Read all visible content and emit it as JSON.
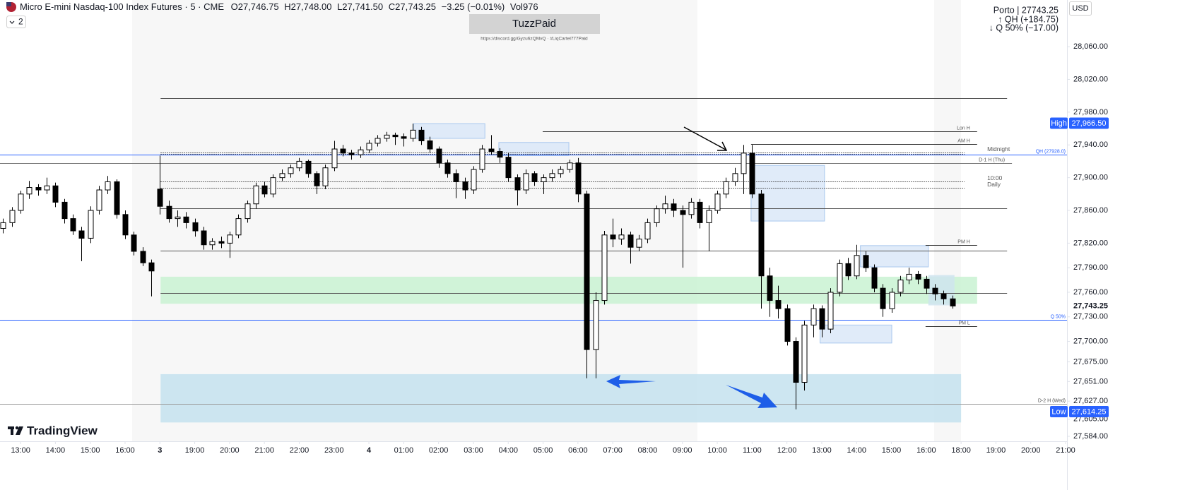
{
  "header": {
    "symbol": "Micro E-mini Nasdaq-100 Index Futures · 5 · CME",
    "ohlc": [
      {
        "key": "O",
        "value": "27,746.75"
      },
      {
        "key": "H",
        "value": "27,748.00"
      },
      {
        "key": "L",
        "value": "27,741.50"
      },
      {
        "key": "C",
        "value": "27,743.25"
      }
    ],
    "change": "−3.25 (−0.01%)",
    "vol_key": "Vol",
    "vol": "976",
    "badge": "2"
  },
  "watermark": {
    "title": "TuzzPaid",
    "subtitle": "https://discord.gg/Gyzu6zQMvQ  ·  #LiqCartel777Paid"
  },
  "info": {
    "lines": [
      "Porto | 27743.25",
      "↑ QH (+184.75)",
      "↓ Q 50% (−17.00)"
    ],
    "currency": "USD"
  },
  "logo": "TradingView",
  "chart_data": {
    "type": "candlestick",
    "x": [
      -0.5,
      -0.25,
      0,
      0.25,
      0.5,
      0.75,
      1,
      1.25,
      1.5,
      1.75,
      2,
      2.25,
      2.5,
      2.75,
      3,
      3.25,
      3.5,
      3.75,
      4,
      4.25,
      4.5,
      4.75,
      5,
      5.25,
      5.5,
      5.75,
      6,
      6.25,
      6.5,
      6.75,
      7,
      7.25,
      7.5,
      7.75,
      8,
      8.25,
      8.5,
      8.75,
      9,
      9.25,
      9.5,
      9.75,
      10,
      10.25,
      10.5,
      10.75,
      11,
      11.25,
      11.5,
      11.75,
      12,
      12.25,
      12.5,
      12.75,
      13,
      13.25,
      13.5,
      13.75,
      14,
      14.25,
      14.5,
      14.75,
      15,
      15.25,
      15.5,
      15.75,
      16,
      16.25,
      16.5,
      16.75,
      17,
      17.25,
      17.5,
      17.75,
      18,
      18.25,
      18.5,
      18.75,
      19,
      19.25,
      19.5,
      19.75,
      20,
      20.25,
      20.5,
      20.75,
      21,
      21.25,
      21.5,
      21.75,
      22,
      22.25,
      22.5,
      22.75,
      23,
      23.25,
      23.5,
      23.75,
      24,
      24.25,
      24.5,
      24.75,
      25,
      25.25,
      25.5,
      25.75,
      26,
      26.25,
      26.5,
      26.75
    ],
    "candles": [
      [
        27838,
        27850,
        27832,
        27845
      ],
      [
        27845,
        27864,
        27840,
        27860
      ],
      [
        27860,
        27884,
        27856,
        27880
      ],
      [
        27880,
        27896,
        27874,
        27888
      ],
      [
        27888,
        27892,
        27878,
        27885
      ],
      [
        27885,
        27900,
        27880,
        27890
      ],
      [
        27890,
        27894,
        27864,
        27870
      ],
      [
        27870,
        27874,
        27844,
        27850
      ],
      [
        27850,
        27855,
        27830,
        27835
      ],
      [
        27835,
        27840,
        27798,
        27826
      ],
      [
        27826,
        27865,
        27820,
        27860
      ],
      [
        27860,
        27890,
        27855,
        27885
      ],
      [
        27885,
        27902,
        27880,
        27895
      ],
      [
        27895,
        27898,
        27850,
        27855
      ],
      [
        27855,
        27860,
        27825,
        27830
      ],
      [
        27830,
        27834,
        27805,
        27810
      ],
      [
        27810,
        27815,
        27792,
        27796
      ],
      [
        27796,
        27800,
        27755,
        27786
      ],
      [
        27886,
        27927,
        27855,
        27865
      ],
      [
        27865,
        27872,
        27845,
        27850
      ],
      [
        27850,
        27860,
        27840,
        27852
      ],
      [
        27852,
        27858,
        27838,
        27845
      ],
      [
        27845,
        27850,
        27828,
        27835
      ],
      [
        27835,
        27840,
        27812,
        27818
      ],
      [
        27818,
        27826,
        27812,
        27822
      ],
      [
        27822,
        27828,
        27814,
        27820
      ],
      [
        27820,
        27834,
        27802,
        27830
      ],
      [
        27830,
        27855,
        27826,
        27850
      ],
      [
        27850,
        27872,
        27845,
        27868
      ],
      [
        27868,
        27894,
        27862,
        27890
      ],
      [
        27890,
        27895,
        27876,
        27880
      ],
      [
        27880,
        27904,
        27876,
        27900
      ],
      [
        27900,
        27910,
        27896,
        27905
      ],
      [
        27905,
        27916,
        27900,
        27912
      ],
      [
        27912,
        27924,
        27908,
        27920
      ],
      [
        27920,
        27922,
        27900,
        27905
      ],
      [
        27905,
        27908,
        27880,
        27890
      ],
      [
        27890,
        27916,
        27886,
        27912
      ],
      [
        27912,
        27945,
        27908,
        27935
      ],
      [
        27935,
        27940,
        27926,
        27930
      ],
      [
        27930,
        27934,
        27922,
        27928
      ],
      [
        27928,
        27938,
        27924,
        27934
      ],
      [
        27934,
        27946,
        27930,
        27942
      ],
      [
        27942,
        27952,
        27938,
        27948
      ],
      [
        27948,
        27956,
        27944,
        27952
      ],
      [
        27952,
        27955,
        27940,
        27950
      ],
      [
        27950,
        27954,
        27938,
        27948
      ],
      [
        27948,
        27966,
        27944,
        27958
      ],
      [
        27958,
        27962,
        27940,
        27945
      ],
      [
        27945,
        27950,
        27930,
        27935
      ],
      [
        27935,
        27938,
        27912,
        27918
      ],
      [
        27918,
        27922,
        27900,
        27905
      ],
      [
        27905,
        27910,
        27875,
        27895
      ],
      [
        27895,
        27900,
        27874,
        27885
      ],
      [
        27885,
        27914,
        27880,
        27910
      ],
      [
        27910,
        27940,
        27906,
        27935
      ],
      [
        27935,
        27952,
        27928,
        27932
      ],
      [
        27932,
        27936,
        27918,
        27925
      ],
      [
        27925,
        27930,
        27895,
        27900
      ],
      [
        27900,
        27904,
        27866,
        27885
      ],
      [
        27885,
        27910,
        27880,
        27905
      ],
      [
        27905,
        27908,
        27890,
        27895
      ],
      [
        27895,
        27904,
        27880,
        27900
      ],
      [
        27900,
        27910,
        27895,
        27905
      ],
      [
        27905,
        27914,
        27900,
        27910
      ],
      [
        27910,
        27922,
        27906,
        27918
      ],
      [
        27918,
        27924,
        27870,
        27880
      ],
      [
        27880,
        27884,
        27655,
        27690
      ],
      [
        27690,
        27760,
        27655,
        27750
      ],
      [
        27750,
        27835,
        27745,
        27830
      ],
      [
        27830,
        27850,
        27815,
        27825
      ],
      [
        27825,
        27838,
        27818,
        27830
      ],
      [
        27830,
        27834,
        27795,
        27815
      ],
      [
        27815,
        27830,
        27810,
        27825
      ],
      [
        27825,
        27850,
        27820,
        27845
      ],
      [
        27845,
        27866,
        27840,
        27862
      ],
      [
        27862,
        27878,
        27856,
        27868
      ],
      [
        27868,
        27874,
        27852,
        27860
      ],
      [
        27860,
        27866,
        27790,
        27855
      ],
      [
        27855,
        27875,
        27850,
        27870
      ],
      [
        27870,
        27874,
        27838,
        27845
      ],
      [
        27845,
        27866,
        27810,
        27860
      ],
      [
        27860,
        27884,
        27856,
        27880
      ],
      [
        27880,
        27900,
        27875,
        27895
      ],
      [
        27895,
        27912,
        27890,
        27905
      ],
      [
        27905,
        27940,
        27880,
        27930
      ],
      [
        27930,
        27940,
        27875,
        27880
      ],
      [
        27880,
        27885,
        27740,
        27780
      ],
      [
        27780,
        27790,
        27730,
        27750
      ],
      [
        27750,
        27768,
        27728,
        27740
      ],
      [
        27740,
        27745,
        27695,
        27700
      ],
      [
        27700,
        27705,
        27617,
        27650
      ],
      [
        27650,
        27725,
        27640,
        27720
      ],
      [
        27720,
        27745,
        27705,
        27740
      ],
      [
        27740,
        27744,
        27705,
        27715
      ],
      [
        27715,
        27765,
        27710,
        27760
      ],
      [
        27760,
        27800,
        27755,
        27795
      ],
      [
        27795,
        27802,
        27775,
        27780
      ],
      [
        27780,
        27818,
        27776,
        27805
      ],
      [
        27805,
        27810,
        27785,
        27790
      ],
      [
        27790,
        27794,
        27760,
        27765
      ],
      [
        27765,
        27770,
        27730,
        27740
      ],
      [
        27740,
        27765,
        27735,
        27760
      ],
      [
        27760,
        27780,
        27755,
        27775
      ],
      [
        27775,
        27790,
        27770,
        27782
      ],
      [
        27782,
        27786,
        27770,
        27776
      ],
      [
        27776,
        27780,
        27758,
        27765
      ],
      [
        27765,
        27770,
        27750,
        27758
      ],
      [
        27758,
        27762,
        27745,
        27752
      ],
      [
        27752,
        27756,
        27740,
        27743.25
      ]
    ],
    "up_color": "#ffffff",
    "down_color": "#000000",
    "outline_color": "#000000",
    "xlim": [
      -0.59,
      30.04
    ],
    "xticks": [
      {
        "value": 0,
        "label": "13:00"
      },
      {
        "value": 1,
        "label": "14:00"
      },
      {
        "value": 2,
        "label": "15:00"
      },
      {
        "value": 3,
        "label": "16:00"
      },
      {
        "value": 4,
        "label": "3"
      },
      {
        "value": 5,
        "label": "19:00"
      },
      {
        "value": 6,
        "label": "20:00"
      },
      {
        "value": 7,
        "label": "21:00"
      },
      {
        "value": 8,
        "label": "22:00"
      },
      {
        "value": 9,
        "label": "23:00"
      },
      {
        "value": 10,
        "label": "4"
      },
      {
        "value": 11,
        "label": "01:00"
      },
      {
        "value": 12,
        "label": "02:00"
      },
      {
        "value": 13,
        "label": "03:00"
      },
      {
        "value": 14,
        "label": "04:00"
      },
      {
        "value": 15,
        "label": "05:00"
      },
      {
        "value": 16,
        "label": "06:00"
      },
      {
        "value": 17,
        "label": "07:00"
      },
      {
        "value": 18,
        "label": "08:00"
      },
      {
        "value": 19,
        "label": "09:00"
      },
      {
        "value": 20,
        "label": "10:00"
      },
      {
        "value": 21,
        "label": "11:00"
      },
      {
        "value": 22,
        "label": "12:00"
      },
      {
        "value": 23,
        "label": "13:00"
      },
      {
        "value": 24,
        "label": "14:00"
      },
      {
        "value": 25,
        "label": "15:00"
      },
      {
        "value": 26,
        "label": "16:00"
      },
      {
        "value": 27,
        "label": "18:00"
      },
      {
        "value": 28,
        "label": "19:00"
      },
      {
        "value": 29,
        "label": "20:00"
      },
      {
        "value": 30,
        "label": "21:00"
      }
    ],
    "ylim": [
      27578,
      28117
    ],
    "yticks": [
      {
        "value": 28060,
        "label": "28,060.00"
      },
      {
        "value": 28020,
        "label": "28,020.00"
      },
      {
        "value": 27980,
        "label": "27,980.00"
      },
      {
        "value": 27940,
        "label": "27,940.00"
      },
      {
        "value": 27900,
        "label": "27,900.00"
      },
      {
        "value": 27860,
        "label": "27,860.00"
      },
      {
        "value": 27820,
        "label": "27,820.00"
      },
      {
        "value": 27790,
        "label": "27,790.00"
      },
      {
        "value": 27760,
        "label": "27,760.00"
      },
      {
        "value": 27730,
        "label": "27,730.00"
      },
      {
        "value": 27700,
        "label": "27,700.00"
      },
      {
        "value": 27675,
        "label": "27,675.00"
      },
      {
        "value": 27651,
        "label": "27,651.00"
      },
      {
        "value": 27627,
        "label": "27,627.00"
      },
      {
        "value": 27605,
        "label": "27,605.00"
      },
      {
        "value": 27584,
        "label": "27,584.00"
      }
    ],
    "grid": false,
    "zones": [
      {
        "top": 27779,
        "bottom": 27746,
        "x": [
          4.02,
          27.46
        ],
        "color": "#c9f2d2"
      },
      {
        "top": 27660,
        "bottom": 27601,
        "x": [
          4.02,
          27.0
        ],
        "color": "#c4e2ee"
      },
      {
        "top": 27966,
        "bottom": 27948,
        "x": [
          11.28,
          13.33
        ],
        "color": "#dbe8f8"
      },
      {
        "top": 27943,
        "bottom": 27927,
        "x": [
          13.73,
          15.74
        ],
        "color": "#dbe8f8"
      },
      {
        "top": 27915,
        "bottom": 27847,
        "x": [
          20.97,
          23.08
        ],
        "color": "#dbe8f8"
      },
      {
        "top": 27817,
        "bottom": 27791,
        "x": [
          24.11,
          26.06
        ],
        "color": "#dbe8f8"
      },
      {
        "top": 27720,
        "bottom": 27698,
        "x": [
          22.95,
          25.01
        ],
        "color": "#dbe8f8"
      },
      {
        "top": 27781,
        "bottom": 27744,
        "x": [
          26.06,
          26.81
        ],
        "color": "#cfe4ee"
      }
    ],
    "levels": [
      {
        "value": 27997,
        "x": [
          4.02,
          28.32
        ],
        "color": "#555555"
      },
      {
        "value": 27957,
        "x": [
          14.99,
          27.46
        ],
        "color": "#333333",
        "label": "Lon H"
      },
      {
        "value": 27941,
        "x": [
          20.97,
          27.46
        ],
        "color": "#333333",
        "label": "AM H"
      },
      {
        "value": 27931,
        "x": [
          4.02,
          27.1
        ],
        "color": "#333333",
        "dashed": true,
        "label": "Midnight"
      },
      {
        "value": 27929,
        "x": [
          4.02,
          27.1
        ],
        "color": "#333333",
        "dashed": true
      },
      {
        "value": 27928,
        "color": "#2962ff",
        "label": "QH (27928.0)"
      },
      {
        "value": 27918,
        "x": [
          -0.59,
          28.46
        ],
        "color": "#777777",
        "label": "D-1 H (Thu)"
      },
      {
        "value": 27895,
        "x": [
          4.02,
          27.1
        ],
        "color": "#333333",
        "dashed": true,
        "label": "10:00"
      },
      {
        "value": 27888,
        "x": [
          4.02,
          27.1
        ],
        "color": "#333333",
        "dashed": true,
        "label": "Daily"
      },
      {
        "value": 27863,
        "x": [
          4.02,
          28.32
        ],
        "color": "#555555"
      },
      {
        "value": 27811,
        "x": [
          4.02,
          28.32
        ],
        "color": "#555555"
      },
      {
        "value": 27818,
        "x": [
          25.98,
          27.46
        ],
        "color": "#333333",
        "label": "PM H"
      },
      {
        "value": 27759,
        "x": [
          4.02,
          28.32
        ],
        "color": "#555555"
      },
      {
        "value": 27726,
        "color": "#2962ff",
        "label": "Q 50%"
      },
      {
        "value": 27719,
        "x": [
          25.98,
          27.46
        ],
        "color": "#333333",
        "label": "PM L"
      },
      {
        "value": 27624,
        "color": "#999999",
        "label": "D-2 H (Wed)"
      }
    ],
    "markers": [
      {
        "label": "High",
        "value": 27966.5,
        "value_label": "27,966.50",
        "color": "#2962ff"
      },
      {
        "label": "Low",
        "value": 27614.25,
        "value_label": "27,614.25",
        "color": "#2962ff"
      }
    ],
    "last": {
      "value": 27743.25,
      "value_label": "27,743.25"
    }
  }
}
